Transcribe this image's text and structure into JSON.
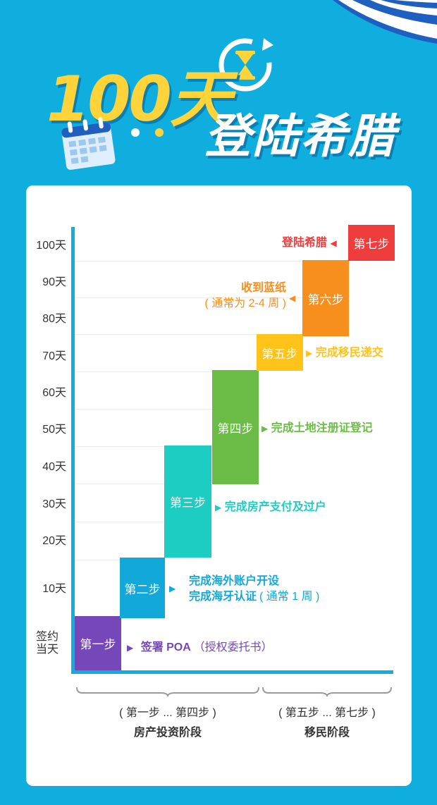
{
  "header": {
    "title_days": "100天",
    "title_main": "登陆希腊"
  },
  "y_axis": [
    "100天",
    "90天",
    "80天",
    "70天",
    "60天",
    "50天",
    "40天",
    "30天",
    "20天",
    "10天",
    "签约\n当天"
  ],
  "steps": [
    {
      "label": "第一步",
      "color": "#7547b8"
    },
    {
      "label": "第二步",
      "color": "#12a8d9"
    },
    {
      "label": "第三步",
      "color": "#1ecdc1"
    },
    {
      "label": "第四步",
      "color": "#6bbc46"
    },
    {
      "label": "第五步",
      "color": "#ffc31a"
    },
    {
      "label": "第六步",
      "color": "#f78f1e"
    },
    {
      "label": "第七步",
      "color": "#ef3c3c"
    }
  ],
  "descriptions": {
    "s1_main": "签署 POA",
    "s1_note": "（授权委托书）",
    "s2_line1": "完成海外账户开设",
    "s2_line2": "完成海牙认证",
    "s2_note": "( 通常 1 周 )",
    "s3": "完成房产支付及过户",
    "s4": "完成土地注册证登记",
    "s5": "完成移民递交",
    "s6_main": "收到蓝纸",
    "s6_note": "( 通常为 2-4 周 )",
    "s7": "登陆希腊"
  },
  "phases": [
    {
      "range": "( 第一步 ... 第四步 )",
      "name": "房产投资阶段"
    },
    {
      "range": "( 第五步 ... 第七步 )",
      "name": "移民阶段"
    }
  ]
}
